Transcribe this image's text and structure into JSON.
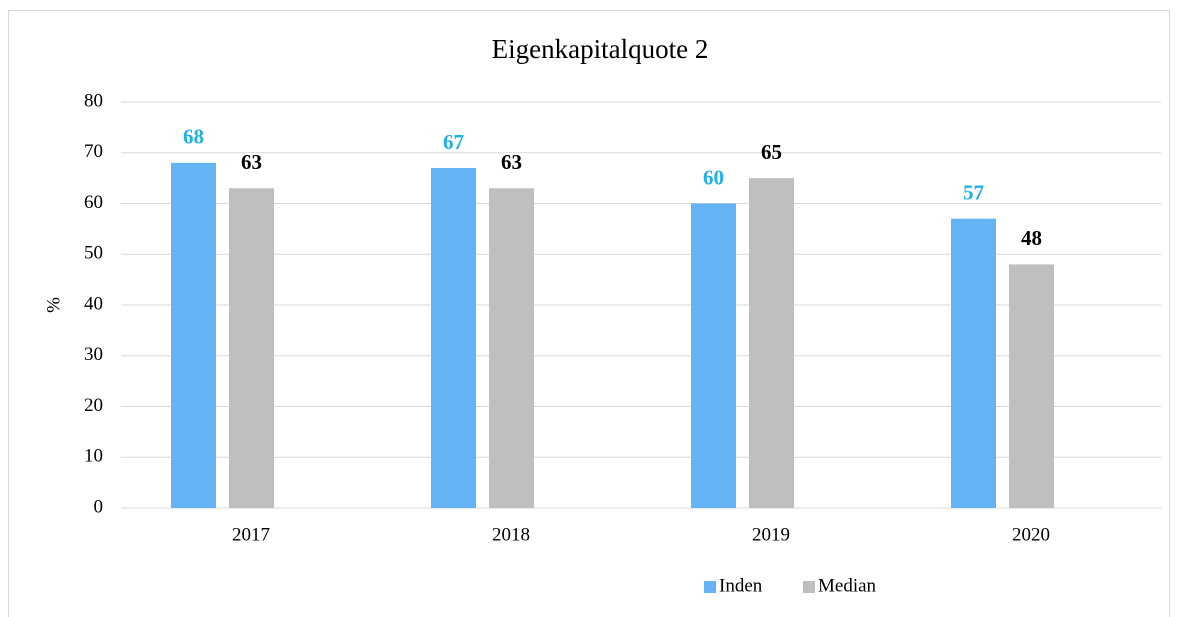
{
  "chart_data": {
    "type": "bar",
    "title": "Eigenkapitalquote 2",
    "y_label": "%",
    "categories": [
      "2017",
      "2018",
      "2019",
      "2020"
    ],
    "series": [
      {
        "name": "Inden",
        "color": "#63b3f5",
        "label_color": "#1fb0e8",
        "values": [
          68,
          67,
          60,
          57
        ]
      },
      {
        "name": "Median",
        "color": "#bfbfbf",
        "label_color": "#000000",
        "values": [
          63,
          63,
          65,
          48
        ]
      }
    ],
    "ylim": [
      0,
      80
    ],
    "yticks": [
      0,
      10,
      20,
      30,
      40,
      50,
      60,
      70,
      80
    ],
    "grid": true,
    "legend": "bottom"
  }
}
